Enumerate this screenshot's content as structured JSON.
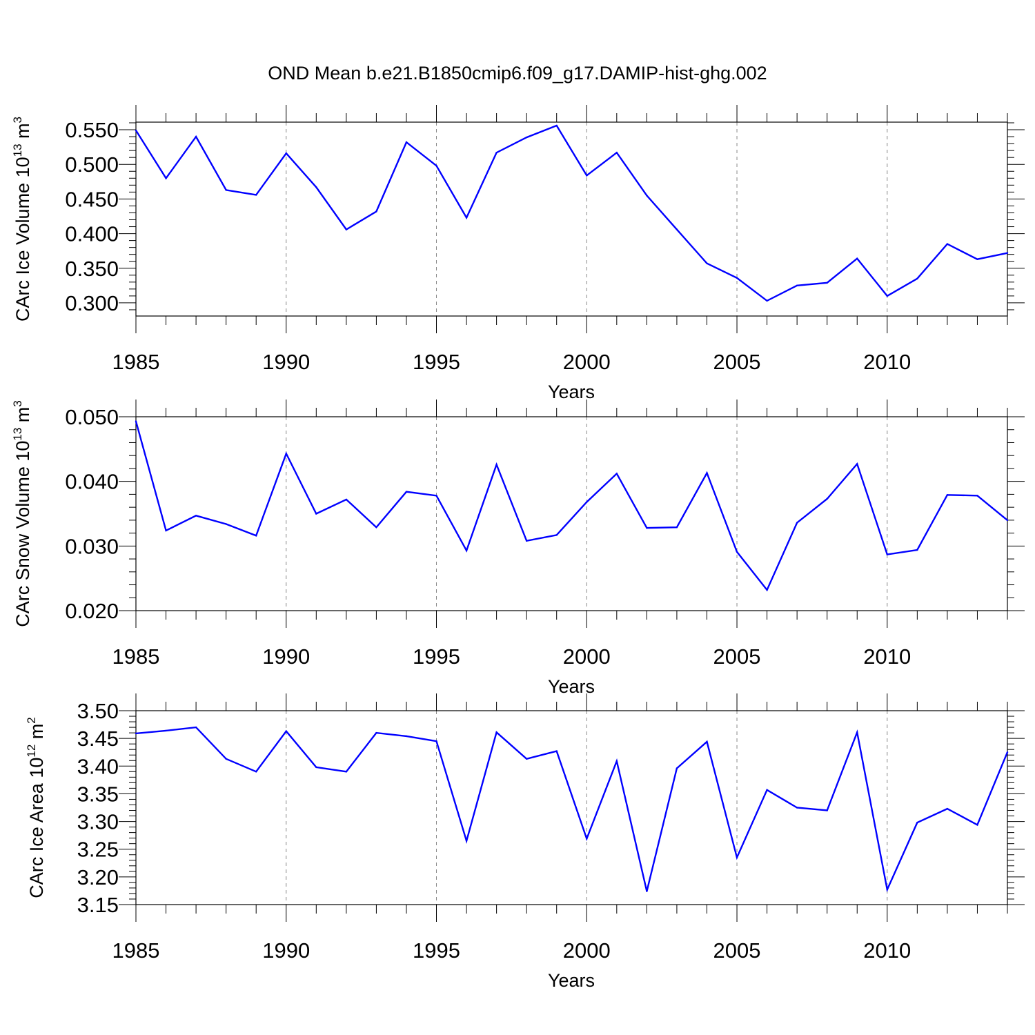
{
  "figure": {
    "title": "OND Mean b.e21.B1850cmip6.f09_g17.DAMIP-hist-ghg.002"
  },
  "colors": {
    "line": "#0000ff",
    "grid": "#888888",
    "frame": "#000000"
  },
  "chart_data": [
    {
      "type": "line",
      "ylabel_main": "CArc Ice Volume 10",
      "ylabel_exp": "13",
      "ylabel_unit": " m",
      "ylabel_unit_exp": "3",
      "xlabel": "Years",
      "xlim": [
        1985,
        2014
      ],
      "xticks": [
        1985,
        1990,
        1995,
        2000,
        2005,
        2010
      ],
      "xtick_labels": [
        "1985",
        "1990",
        "1995",
        "2000",
        "2005",
        "2010"
      ],
      "grid_x": [
        1990,
        1995,
        2000,
        2005,
        2010
      ],
      "ylim": [
        0.281,
        0.561
      ],
      "yticks": [
        0.3,
        0.35,
        0.4,
        0.45,
        0.5,
        0.55
      ],
      "ytick_labels": [
        "0.300",
        "0.350",
        "0.400",
        "0.450",
        "0.500",
        "0.550"
      ],
      "y_minor_step": 0.01,
      "x": [
        1985,
        1986,
        1987,
        1988,
        1989,
        1990,
        1991,
        1992,
        1993,
        1994,
        1995,
        1996,
        1997,
        1998,
        1999,
        2000,
        2001,
        2002,
        2003,
        2004,
        2005,
        2006,
        2007,
        2008,
        2009,
        2010,
        2011,
        2012,
        2013,
        2014
      ],
      "values": [
        0.549,
        0.48,
        0.54,
        0.463,
        0.456,
        0.516,
        0.467,
        0.406,
        0.432,
        0.532,
        0.498,
        0.423,
        0.517,
        0.539,
        0.556,
        0.484,
        0.517,
        0.455,
        0.406,
        0.357,
        0.336,
        0.303,
        0.325,
        0.329,
        0.364,
        0.31,
        0.335,
        0.385,
        0.363,
        0.372
      ]
    },
    {
      "type": "line",
      "ylabel_main": "CArc Snow Volume 10",
      "ylabel_exp": "13",
      "ylabel_unit": " m",
      "ylabel_unit_exp": "3",
      "xlabel": "Years",
      "xlim": [
        1985,
        2014
      ],
      "xticks": [
        1985,
        1990,
        1995,
        2000,
        2005,
        2010
      ],
      "xtick_labels": [
        "1985",
        "1990",
        "1995",
        "2000",
        "2005",
        "2010"
      ],
      "grid_x": [
        1990,
        1995,
        2000,
        2005,
        2010
      ],
      "ylim": [
        0.02,
        0.05
      ],
      "yticks": [
        0.02,
        0.03,
        0.04,
        0.05
      ],
      "ytick_labels": [
        "0.020",
        "0.030",
        "0.040",
        "0.050"
      ],
      "y_minor_step": 0.002,
      "x": [
        1985,
        1986,
        1987,
        1988,
        1989,
        1990,
        1991,
        1992,
        1993,
        1994,
        1995,
        1996,
        1997,
        1998,
        1999,
        2000,
        2001,
        2002,
        2003,
        2004,
        2005,
        2006,
        2007,
        2008,
        2009,
        2010,
        2011,
        2012,
        2013,
        2014
      ],
      "values": [
        0.0493,
        0.0324,
        0.0347,
        0.0334,
        0.0316,
        0.0443,
        0.035,
        0.0372,
        0.0329,
        0.0384,
        0.0378,
        0.0293,
        0.0426,
        0.0308,
        0.0317,
        0.0368,
        0.0412,
        0.0328,
        0.0329,
        0.0413,
        0.0291,
        0.0232,
        0.0336,
        0.0373,
        0.0427,
        0.0287,
        0.0294,
        0.0379,
        0.0378,
        0.034
      ]
    },
    {
      "type": "line",
      "ylabel_main": "CArc Ice Area 10",
      "ylabel_exp": "12",
      "ylabel_unit": " m",
      "ylabel_unit_exp": "2",
      "xlabel": "Years",
      "xlim": [
        1985,
        2014
      ],
      "xticks": [
        1985,
        1990,
        1995,
        2000,
        2005,
        2010
      ],
      "xtick_labels": [
        "1985",
        "1990",
        "1995",
        "2000",
        "2005",
        "2010"
      ],
      "grid_x": [
        1990,
        1995,
        2000,
        2005,
        2010
      ],
      "ylim": [
        3.15,
        3.5
      ],
      "yticks": [
        3.15,
        3.2,
        3.25,
        3.3,
        3.35,
        3.4,
        3.45,
        3.5
      ],
      "ytick_labels": [
        "3.15",
        "3.20",
        "3.25",
        "3.30",
        "3.35",
        "3.40",
        "3.45",
        "3.50"
      ],
      "y_minor_step": 0.01,
      "x": [
        1985,
        1986,
        1987,
        1988,
        1989,
        1990,
        1991,
        1992,
        1993,
        1994,
        1995,
        1996,
        1997,
        1998,
        1999,
        2000,
        2001,
        2002,
        2003,
        2004,
        2005,
        2006,
        2007,
        2008,
        2009,
        2010,
        2011,
        2012,
        2013,
        2014
      ],
      "values": [
        3.459,
        3.464,
        3.47,
        3.413,
        3.39,
        3.463,
        3.398,
        3.39,
        3.46,
        3.454,
        3.445,
        3.265,
        3.461,
        3.413,
        3.427,
        3.269,
        3.409,
        3.174,
        3.396,
        3.444,
        3.235,
        3.357,
        3.325,
        3.32,
        3.461,
        3.177,
        3.298,
        3.323,
        3.294,
        3.425
      ]
    }
  ]
}
